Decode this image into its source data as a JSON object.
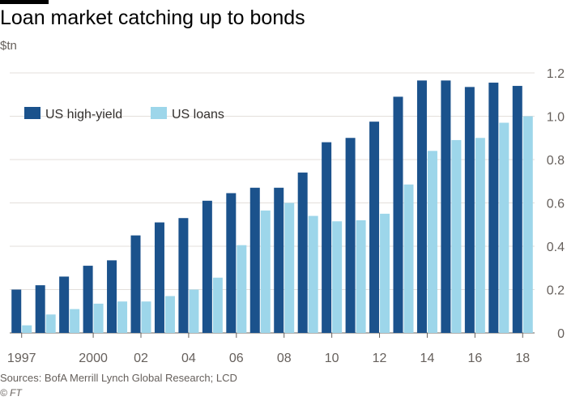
{
  "title": "Loan market catching up to bonds",
  "unit_label": "$tn",
  "source": "Sources: BofA Merrill Lynch Global Research; LCD",
  "credit": "© FT",
  "chart_data": {
    "type": "bar",
    "x": [
      1997,
      1998,
      1999,
      2000,
      2001,
      2002,
      2003,
      2004,
      2005,
      2006,
      2007,
      2008,
      2009,
      2010,
      2011,
      2012,
      2013,
      2014,
      2015,
      2016,
      2017,
      2018
    ],
    "x_tick_labels": [
      {
        "x": 1997,
        "label": "1997"
      },
      {
        "x": 2000,
        "label": "2000"
      },
      {
        "x": 2002,
        "label": "02"
      },
      {
        "x": 2004,
        "label": "04"
      },
      {
        "x": 2006,
        "label": "06"
      },
      {
        "x": 2008,
        "label": "08"
      },
      {
        "x": 2010,
        "label": "10"
      },
      {
        "x": 2012,
        "label": "12"
      },
      {
        "x": 2014,
        "label": "14"
      },
      {
        "x": 2016,
        "label": "16"
      },
      {
        "x": 2018,
        "label": "18"
      }
    ],
    "series": [
      {
        "name": "US high-yield",
        "color": "#1b528c",
        "values": [
          0.2,
          0.22,
          0.26,
          0.31,
          0.335,
          0.45,
          0.51,
          0.53,
          0.61,
          0.645,
          0.67,
          0.67,
          0.74,
          0.88,
          0.9,
          0.975,
          1.09,
          1.165,
          1.165,
          1.135,
          1.155,
          1.14
        ]
      },
      {
        "name": "US loans",
        "color": "#9dd6ea",
        "values": [
          0.035,
          0.085,
          0.11,
          0.135,
          0.145,
          0.145,
          0.17,
          0.2,
          0.255,
          0.405,
          0.565,
          0.6,
          0.54,
          0.515,
          0.52,
          0.55,
          0.685,
          0.84,
          0.89,
          0.9,
          0.97,
          1.0
        ]
      }
    ],
    "ylim": [
      0,
      1.2
    ],
    "yticks": [
      "0",
      "0.2",
      "0.4",
      "0.6",
      "0.8",
      "1.0",
      "1.2"
    ],
    "y_axis_side": "right",
    "grid": true,
    "legend_position": "top-left"
  }
}
